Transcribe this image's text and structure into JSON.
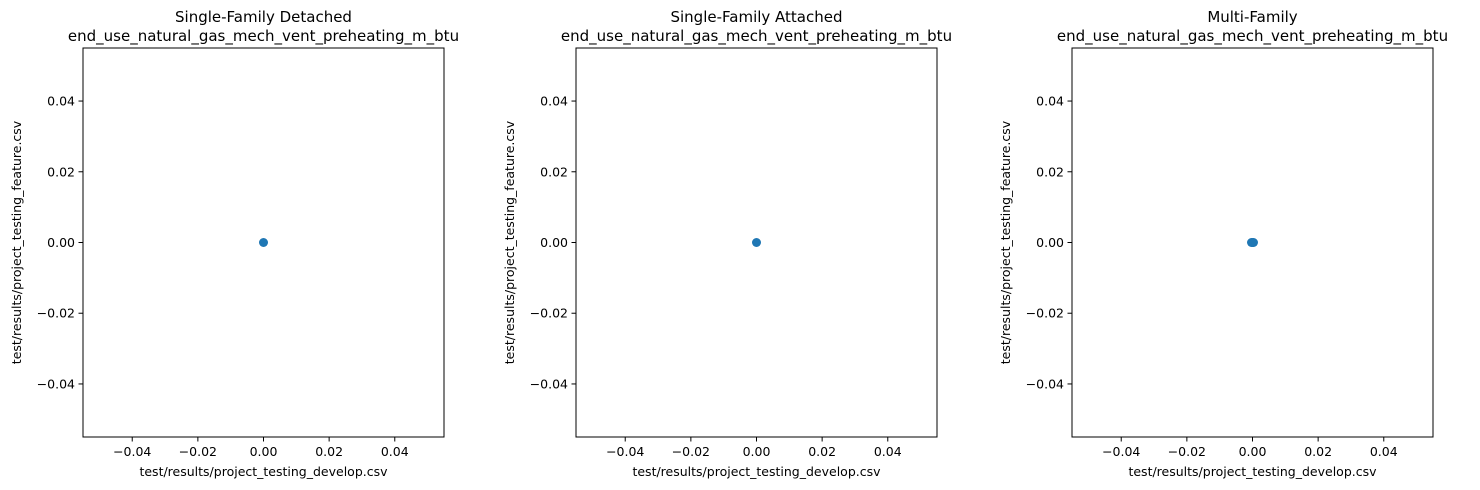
{
  "chart_data": [
    {
      "type": "scatter",
      "title": "Single-Family Detached",
      "subtitle": "end_use_natural_gas_mech_vent_preheating_m_btu",
      "xlabel": "test/results/project_testing_develop.csv",
      "ylabel": "test/results/project_testing_feature.csv",
      "xlim": [
        -0.055,
        0.055
      ],
      "ylim": [
        -0.055,
        0.055
      ],
      "xticks": [
        -0.04,
        -0.02,
        0.0,
        0.02,
        0.04
      ],
      "yticks": [
        -0.04,
        -0.02,
        0.0,
        0.02,
        0.04
      ],
      "xtick_labels": [
        "−0.04",
        "−0.02",
        "0.00",
        "0.02",
        "0.04"
      ],
      "ytick_labels": [
        "−0.04",
        "−0.02",
        "0.00",
        "0.02",
        "0.04"
      ],
      "grid": false,
      "points": [
        {
          "x": 0,
          "y": 0
        }
      ],
      "marker_color": "#1f77b4"
    },
    {
      "type": "scatter",
      "title": "Single-Family Attached",
      "subtitle": "end_use_natural_gas_mech_vent_preheating_m_btu",
      "xlabel": "test/results/project_testing_develop.csv",
      "ylabel": "test/results/project_testing_feature.csv",
      "xlim": [
        -0.055,
        0.055
      ],
      "ylim": [
        -0.055,
        0.055
      ],
      "xticks": [
        -0.04,
        -0.02,
        0.0,
        0.02,
        0.04
      ],
      "yticks": [
        -0.04,
        -0.02,
        0.0,
        0.02,
        0.04
      ],
      "xtick_labels": [
        "−0.04",
        "−0.02",
        "0.00",
        "0.02",
        "0.04"
      ],
      "ytick_labels": [
        "−0.04",
        "−0.02",
        "0.00",
        "0.02",
        "0.04"
      ],
      "grid": false,
      "points": [
        {
          "x": 0,
          "y": 0
        }
      ],
      "marker_color": "#1f77b4"
    },
    {
      "type": "scatter",
      "title": "Multi-Family",
      "subtitle": "end_use_natural_gas_mech_vent_preheating_m_btu",
      "xlabel": "test/results/project_testing_develop.csv",
      "ylabel": "test/results/project_testing_feature.csv",
      "xlim": [
        -0.055,
        0.055
      ],
      "ylim": [
        -0.055,
        0.055
      ],
      "xticks": [
        -0.04,
        -0.02,
        0.0,
        0.02,
        0.04
      ],
      "yticks": [
        -0.04,
        -0.02,
        0.0,
        0.02,
        0.04
      ],
      "xtick_labels": [
        "−0.04",
        "−0.02",
        "0.00",
        "0.02",
        "0.04"
      ],
      "ytick_labels": [
        "−0.04",
        "−0.02",
        "0.00",
        "0.02",
        "0.04"
      ],
      "grid": false,
      "points": [
        {
          "x": 0,
          "y": 0
        },
        {
          "x": 0.0003,
          "y": 0
        },
        {
          "x": -0.0003,
          "y": 0
        }
      ],
      "marker_color": "#1f77b4"
    }
  ]
}
